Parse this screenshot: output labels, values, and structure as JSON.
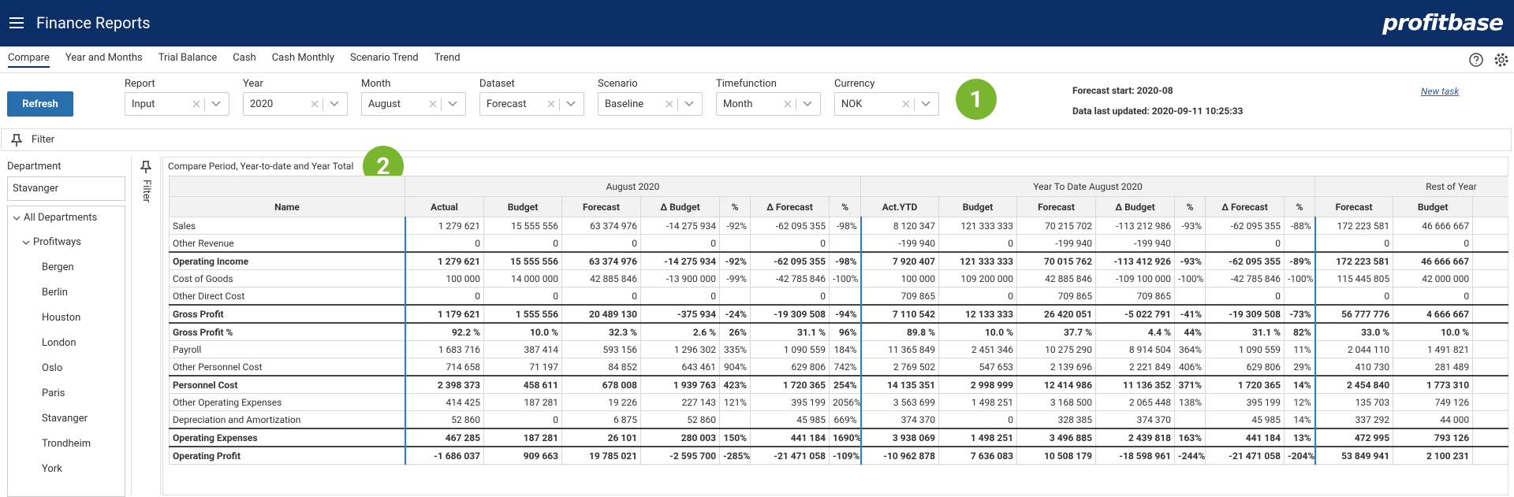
{
  "header": {
    "title": "Finance Reports",
    "logo": "profitbase"
  },
  "tabs": [
    "Compare",
    "Year and Months",
    "Trial Balance",
    "Cash",
    "Cash Monthly",
    "Scenario Trend",
    "Trend"
  ],
  "toolbar": {
    "refresh": "Refresh",
    "fields": [
      {
        "label": "Report",
        "value": "Input"
      },
      {
        "label": "Year",
        "value": "2020"
      },
      {
        "label": "Month",
        "value": "August"
      },
      {
        "label": "Dataset",
        "value": "Forecast"
      },
      {
        "label": "Scenario",
        "value": "Baseline"
      },
      {
        "label": "Timefunction",
        "value": "Month"
      },
      {
        "label": "Currency",
        "value": "NOK"
      }
    ],
    "badge": "1",
    "forecast_start": "Forecast start: 2020-08",
    "last_updated": "Data last updated: 2020-09-11 10:25:33",
    "new_task": "New task"
  },
  "filter_bar": {
    "label": "Filter"
  },
  "department": {
    "label": "Department",
    "value": "Stavanger",
    "root": "All Departments",
    "company": "Profitways",
    "children": [
      "Bergen",
      "Berlin",
      "Houston",
      "London",
      "Oslo",
      "Paris",
      "Stavanger",
      "Trondheim",
      "York"
    ]
  },
  "side_filter": "Filter",
  "table": {
    "title": "Compare Period, Year-to-date and Year Total",
    "badge": "2",
    "groups": [
      "August 2020",
      "Year To Date August 2020",
      "Rest of Year"
    ],
    "columns": [
      "Name",
      "Actual",
      "Budget",
      "Forecast",
      "Δ Budget",
      "%",
      "Δ Forecast",
      "%",
      "Act.YTD",
      "Budget",
      "Forecast",
      "Δ Budget",
      "%",
      "Δ Forecast",
      "%",
      "Forecast",
      "Budget"
    ],
    "rows": [
      {
        "name": "Sales",
        "bold": false,
        "cells": [
          "1 279 621",
          "15 555 556",
          "63 374 976",
          "-14 275 934",
          "-92%",
          "-62 095 355",
          "-98%",
          "8 120 347",
          "121 333 333",
          "70 215 702",
          "-113 212 986",
          "-93%",
          "-62 095 355",
          "-88%",
          "172 223 581",
          "46 666 667"
        ]
      },
      {
        "name": "Other Revenue",
        "bold": false,
        "cells": [
          "0",
          "0",
          "0",
          "0",
          null,
          "0",
          null,
          "-199 940",
          "0",
          "-199 940",
          "-199 940",
          null,
          "0",
          null,
          "0",
          "0"
        ]
      },
      {
        "name": "Operating Income",
        "bold": true,
        "cells": [
          "1 279 621",
          "15 555 556",
          "63 374 976",
          "-14 275 934",
          "-92%",
          "-62 095 355",
          "-98%",
          "7 920 407",
          "121 333 333",
          "70 015 762",
          "-113 412 926",
          "-93%",
          "-62 095 355",
          "-89%",
          "172 223 581",
          "46 666 667"
        ]
      },
      {
        "name": "Cost of Goods",
        "bold": false,
        "cells": [
          "100 000",
          "14 000 000",
          "42 885 846",
          "-13 900 000",
          "-99%",
          "-42 785 846",
          "-100%",
          "100 000",
          "109 200 000",
          "42 885 846",
          "-109 100 000",
          "-100%",
          "-42 785 846",
          "-100%",
          "115 445 805",
          "42 000 000"
        ]
      },
      {
        "name": "Other Direct Cost",
        "bold": false,
        "cells": [
          "0",
          "0",
          "0",
          "0",
          null,
          "0",
          null,
          "709 865",
          "0",
          "709 865",
          "709 865",
          null,
          "0",
          null,
          "0",
          "0"
        ]
      },
      {
        "name": "Gross Profit",
        "bold": true,
        "cells": [
          "1 179 621",
          "1 555 556",
          "20 489 130",
          "-375 934",
          "-24%",
          "-19 309 508",
          "-94%",
          "7 110 542",
          "12 133 333",
          "26 420 051",
          "-5 022 791",
          "-41%",
          "-19 309 508",
          "-73%",
          "56 777 776",
          "4 666 667"
        ]
      },
      {
        "name": "Gross Profit %",
        "bold": true,
        "cells": [
          "92.2 %",
          "10.0 %",
          "32.3 %",
          "2.6 %",
          "26%",
          "31.1 %",
          "96%",
          "89.8 %",
          "10.0 %",
          "37.7 %",
          "4.4 %",
          "44%",
          "31.1 %",
          "82%",
          "33.0 %",
          "10.0 %"
        ]
      },
      {
        "name": "Payroll",
        "bold": false,
        "cells": [
          "1 683 716",
          "387 414",
          "593 156",
          "1 296 302",
          "335%",
          "1 090 559",
          "184%",
          "11 365 849",
          "2 451 346",
          "10 275 290",
          "8 914 504",
          "364%",
          "1 090 559",
          "11%",
          "2 044 110",
          "1 491 821"
        ]
      },
      {
        "name": "Other Personnel Cost",
        "bold": false,
        "cells": [
          "714 658",
          "71 197",
          "84 852",
          "643 461",
          "904%",
          "629 806",
          "742%",
          "2 769 502",
          "547 653",
          "2 139 696",
          "2 221 849",
          "406%",
          "629 806",
          "29%",
          "410 730",
          "281 489"
        ]
      },
      {
        "name": "Personnel Cost",
        "bold": true,
        "cells": [
          "2 398 373",
          "458 611",
          "678 008",
          "1 939 763",
          "423%",
          "1 720 365",
          "254%",
          "14 135 351",
          "2 998 999",
          "12 414 986",
          "11 136 352",
          "371%",
          "1 720 365",
          "14%",
          "2 454 840",
          "1 773 310"
        ]
      },
      {
        "name": "Other Operating Expenses",
        "bold": false,
        "cells": [
          "414 425",
          "187 281",
          "19 226",
          "227 143",
          "121%",
          "395 199",
          "2056%",
          "3 563 699",
          "1 498 251",
          "3 168 500",
          "2 065 448",
          "138%",
          "395 199",
          "12%",
          "135 703",
          "749 126"
        ]
      },
      {
        "name": "Depreciation and Amortization",
        "bold": false,
        "cells": [
          "52 860",
          "0",
          "6 875",
          "52 860",
          null,
          "45 985",
          "669%",
          "374 370",
          "0",
          "328 385",
          "374 370",
          null,
          "45 985",
          "14%",
          "337 292",
          "44 000"
        ]
      },
      {
        "name": "Operating Expenses",
        "bold": true,
        "cells": [
          "467 285",
          "187 281",
          "26 101",
          "280 003",
          "150%",
          "441 184",
          "1690%",
          "3 938 069",
          "1 498 251",
          "3 496 885",
          "2 439 818",
          "163%",
          "441 184",
          "13%",
          "472 995",
          "793 126"
        ]
      },
      {
        "name": "Operating Profit",
        "bold": true,
        "cells": [
          "-1 686 037",
          "909 663",
          "19 785 021",
          "-2 595 700",
          "-285%",
          "-21 471 058",
          "-109%",
          "-10 962 878",
          "7 636 083",
          "10 508 179",
          "-18 598 961",
          "-244%",
          "-21 471 058",
          "-204%",
          "53 849 941",
          "2 100 231"
        ]
      }
    ]
  }
}
